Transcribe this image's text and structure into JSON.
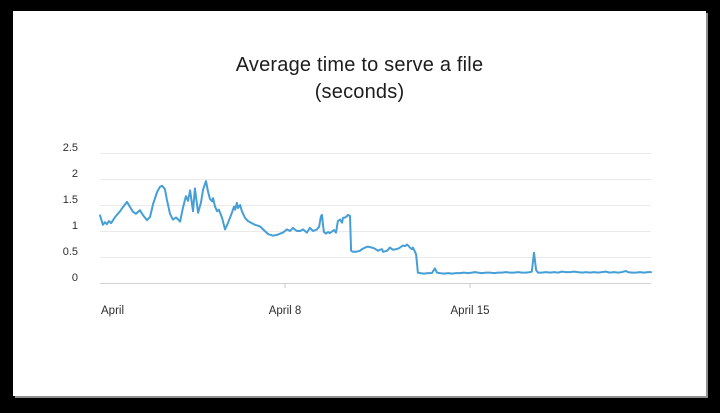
{
  "colors": {
    "frame_bg": "#000000",
    "card_bg": "#ffffff",
    "line": "#459fd6",
    "grid": "#eaeaea",
    "axis": "#d2d2d2",
    "tick": "#c9c9c9",
    "title_text": "#1d1d1d",
    "tick_text": "#2e2e2e"
  },
  "chart_data": {
    "type": "line",
    "title": "Average time to serve a file",
    "subtitle": "(seconds)",
    "legend": "none",
    "grid": "horizontal",
    "y_axis": {
      "range": [
        0,
        2.5
      ],
      "ticks": [
        {
          "v": 2.5,
          "label": "2.5"
        },
        {
          "v": 2.0,
          "label": "2"
        },
        {
          "v": 1.5,
          "label": "1.5"
        },
        {
          "v": 1.0,
          "label": "1"
        },
        {
          "v": 0.5,
          "label": "0.5"
        },
        {
          "v": 0.0,
          "label": "0"
        }
      ]
    },
    "x_axis": {
      "unit": "date (April)",
      "range_days": [
        1,
        21.85
      ],
      "ticks": [
        {
          "day": 1,
          "label": "April",
          "tick_mark": false
        },
        {
          "day": 8,
          "label": "April 8",
          "tick_mark": true
        },
        {
          "day": 15,
          "label": "April 15",
          "tick_mark": true
        }
      ]
    },
    "series": [
      {
        "name": "average-time-to-serve-a-file",
        "color": "#459fd6",
        "points": [
          [
            1.0,
            1.3
          ],
          [
            1.11,
            1.12
          ],
          [
            1.19,
            1.17
          ],
          [
            1.26,
            1.13
          ],
          [
            1.34,
            1.19
          ],
          [
            1.42,
            1.15
          ],
          [
            1.57,
            1.27
          ],
          [
            1.76,
            1.38
          ],
          [
            1.87,
            1.46
          ],
          [
            2.02,
            1.56
          ],
          [
            2.14,
            1.46
          ],
          [
            2.25,
            1.37
          ],
          [
            2.36,
            1.33
          ],
          [
            2.44,
            1.37
          ],
          [
            2.51,
            1.4
          ],
          [
            2.63,
            1.3
          ],
          [
            2.78,
            1.21
          ],
          [
            2.89,
            1.27
          ],
          [
            3.01,
            1.52
          ],
          [
            3.16,
            1.75
          ],
          [
            3.27,
            1.85
          ],
          [
            3.35,
            1.87
          ],
          [
            3.46,
            1.8
          ],
          [
            3.53,
            1.6
          ],
          [
            3.65,
            1.33
          ],
          [
            3.76,
            1.22
          ],
          [
            3.88,
            1.26
          ],
          [
            4.03,
            1.18
          ],
          [
            4.14,
            1.45
          ],
          [
            4.25,
            1.67
          ],
          [
            4.33,
            1.58
          ],
          [
            4.41,
            1.78
          ],
          [
            4.52,
            1.38
          ],
          [
            4.59,
            1.82
          ],
          [
            4.71,
            1.35
          ],
          [
            4.82,
            1.55
          ],
          [
            4.9,
            1.8
          ],
          [
            5.01,
            1.96
          ],
          [
            5.09,
            1.75
          ],
          [
            5.16,
            1.62
          ],
          [
            5.24,
            1.57
          ],
          [
            5.28,
            1.63
          ],
          [
            5.35,
            1.47
          ],
          [
            5.43,
            1.38
          ],
          [
            5.5,
            1.41
          ],
          [
            5.62,
            1.25
          ],
          [
            5.73,
            1.03
          ],
          [
            5.84,
            1.15
          ],
          [
            5.99,
            1.35
          ],
          [
            6.07,
            1.47
          ],
          [
            6.11,
            1.41
          ],
          [
            6.18,
            1.54
          ],
          [
            6.22,
            1.44
          ],
          [
            6.3,
            1.5
          ],
          [
            6.37,
            1.38
          ],
          [
            6.49,
            1.25
          ],
          [
            6.6,
            1.19
          ],
          [
            6.75,
            1.15
          ],
          [
            6.86,
            1.12
          ],
          [
            7.05,
            1.09
          ],
          [
            7.17,
            1.03
          ],
          [
            7.36,
            0.94
          ],
          [
            7.55,
            0.91
          ],
          [
            7.73,
            0.93
          ],
          [
            7.92,
            0.97
          ],
          [
            8.07,
            1.03
          ],
          [
            8.19,
            1.0
          ],
          [
            8.3,
            1.06
          ],
          [
            8.45,
            1.0
          ],
          [
            8.57,
            1.0
          ],
          [
            8.68,
            1.03
          ],
          [
            8.83,
            0.97
          ],
          [
            8.94,
            1.06
          ],
          [
            9.06,
            1.0
          ],
          [
            9.21,
            1.03
          ],
          [
            9.29,
            1.08
          ],
          [
            9.36,
            1.28
          ],
          [
            9.4,
            1.31
          ],
          [
            9.44,
            1.1
          ],
          [
            9.47,
            0.98
          ],
          [
            9.55,
            0.95
          ],
          [
            9.63,
            0.98
          ],
          [
            9.7,
            0.96
          ],
          [
            9.78,
            0.99
          ],
          [
            9.85,
            1.02
          ],
          [
            9.93,
            0.97
          ],
          [
            10.0,
            1.19
          ],
          [
            10.08,
            1.22
          ],
          [
            10.16,
            1.16
          ],
          [
            10.19,
            1.25
          ],
          [
            10.27,
            1.26
          ],
          [
            10.34,
            1.28
          ],
          [
            10.38,
            1.31
          ],
          [
            10.46,
            1.29
          ],
          [
            10.5,
            0.62
          ],
          [
            10.57,
            0.6
          ],
          [
            10.69,
            0.6
          ],
          [
            10.76,
            0.61
          ],
          [
            10.84,
            0.62
          ],
          [
            10.91,
            0.65
          ],
          [
            11.03,
            0.68
          ],
          [
            11.14,
            0.7
          ],
          [
            11.21,
            0.69
          ],
          [
            11.29,
            0.68
          ],
          [
            11.4,
            0.66
          ],
          [
            11.52,
            0.62
          ],
          [
            11.59,
            0.64
          ],
          [
            11.67,
            0.65
          ],
          [
            11.71,
            0.6
          ],
          [
            11.78,
            0.61
          ],
          [
            11.86,
            0.62
          ],
          [
            11.97,
            0.68
          ],
          [
            12.08,
            0.64
          ],
          [
            12.2,
            0.65
          ],
          [
            12.27,
            0.66
          ],
          [
            12.35,
            0.68
          ],
          [
            12.46,
            0.72
          ],
          [
            12.54,
            0.71
          ],
          [
            12.62,
            0.74
          ],
          [
            12.73,
            0.68
          ],
          [
            12.8,
            0.65
          ],
          [
            12.84,
            0.68
          ],
          [
            12.92,
            0.6
          ],
          [
            12.96,
            0.55
          ],
          [
            13.03,
            0.2
          ],
          [
            13.11,
            0.19
          ],
          [
            13.26,
            0.18
          ],
          [
            13.41,
            0.19
          ],
          [
            13.56,
            0.19
          ],
          [
            13.67,
            0.28
          ],
          [
            13.75,
            0.2
          ],
          [
            13.86,
            0.19
          ],
          [
            14.01,
            0.18
          ],
          [
            14.17,
            0.19
          ],
          [
            14.32,
            0.18
          ],
          [
            14.47,
            0.19
          ],
          [
            14.62,
            0.19
          ],
          [
            14.77,
            0.2
          ],
          [
            14.92,
            0.19
          ],
          [
            15.07,
            0.2
          ],
          [
            15.19,
            0.21
          ],
          [
            15.3,
            0.2
          ],
          [
            15.45,
            0.19
          ],
          [
            15.6,
            0.2
          ],
          [
            15.76,
            0.2
          ],
          [
            15.91,
            0.19
          ],
          [
            16.06,
            0.2
          ],
          [
            16.21,
            0.2
          ],
          [
            16.36,
            0.21
          ],
          [
            16.51,
            0.2
          ],
          [
            16.66,
            0.2
          ],
          [
            16.81,
            0.21
          ],
          [
            16.97,
            0.2
          ],
          [
            17.12,
            0.2
          ],
          [
            17.27,
            0.21
          ],
          [
            17.34,
            0.22
          ],
          [
            17.42,
            0.58
          ],
          [
            17.5,
            0.25
          ],
          [
            17.57,
            0.2
          ],
          [
            17.72,
            0.2
          ],
          [
            17.87,
            0.21
          ],
          [
            18.03,
            0.2
          ],
          [
            18.18,
            0.21
          ],
          [
            18.33,
            0.2
          ],
          [
            18.48,
            0.22
          ],
          [
            18.63,
            0.21
          ],
          [
            18.78,
            0.21
          ],
          [
            18.93,
            0.22
          ],
          [
            19.08,
            0.21
          ],
          [
            19.24,
            0.2
          ],
          [
            19.39,
            0.21
          ],
          [
            19.54,
            0.2
          ],
          [
            19.69,
            0.21
          ],
          [
            19.84,
            0.2
          ],
          [
            19.99,
            0.21
          ],
          [
            20.14,
            0.22
          ],
          [
            20.29,
            0.2
          ],
          [
            20.45,
            0.21
          ],
          [
            20.6,
            0.2
          ],
          [
            20.75,
            0.21
          ],
          [
            20.9,
            0.23
          ],
          [
            20.98,
            0.21
          ],
          [
            21.13,
            0.2
          ],
          [
            21.28,
            0.2
          ],
          [
            21.43,
            0.21
          ],
          [
            21.58,
            0.2
          ],
          [
            21.73,
            0.21
          ],
          [
            21.85,
            0.21
          ]
        ]
      }
    ]
  }
}
